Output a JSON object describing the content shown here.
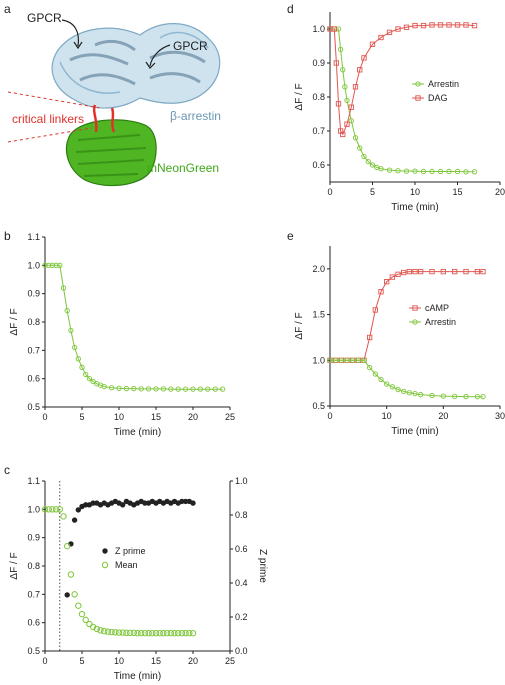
{
  "panels": {
    "a": "a",
    "b": "b",
    "c": "c",
    "d": "d",
    "e": "e"
  },
  "structure": {
    "gpcr_left": "GPCR",
    "gpcr_right": "GPCR",
    "arrestin": "β-arrestin",
    "linkers": "critical linkers",
    "neon": "mNeonGreen",
    "colors": {
      "arrestin": "#a9cde0",
      "neon": "#3ea818",
      "linker": "#e1322a"
    }
  },
  "colors": {
    "green": "#7ec63a",
    "red": "#e25550",
    "black": "#222222"
  },
  "chart_data": [
    {
      "panel": "b",
      "type": "line",
      "xlabel": "Time (min)",
      "ylabel": "ΔF / F",
      "xlim": [
        0,
        25
      ],
      "ylim": [
        0.5,
        1.1
      ],
      "xticks": [
        "0",
        "5",
        "10",
        "15",
        "20",
        "25"
      ],
      "yticks": [
        "0.5",
        "0.6",
        "0.7",
        "0.8",
        "0.9",
        "1.0",
        "1.1"
      ],
      "series": [
        {
          "color": "#7ec63a",
          "x": [
            0.0,
            0.5,
            1.0,
            1.5,
            2.0,
            2.5,
            3.0,
            3.5,
            4.0,
            4.5,
            5.0,
            5.5,
            6.0,
            6.5,
            7.0,
            7.5,
            8.0,
            9.0,
            10.0,
            11.0,
            12.0,
            13.0,
            14.0,
            15.0,
            16.0,
            17.0,
            18.0,
            19.0,
            20.0,
            21.0,
            22.0,
            23.0,
            24.0
          ],
          "y": [
            1.0,
            1.0,
            1.0,
            1.0,
            1.0,
            0.92,
            0.84,
            0.77,
            0.71,
            0.67,
            0.64,
            0.615,
            0.6,
            0.59,
            0.582,
            0.577,
            0.572,
            0.568,
            0.566,
            0.565,
            0.565,
            0.564,
            0.564,
            0.564,
            0.564,
            0.563,
            0.563,
            0.563,
            0.563,
            0.563,
            0.563,
            0.563,
            0.563
          ]
        }
      ]
    },
    {
      "panel": "c",
      "type": "scatter",
      "xlabel": "Time (min)",
      "ylabel": "ΔF / F",
      "y2label": "Z prime",
      "xlim": [
        0,
        25
      ],
      "ylim": [
        0.5,
        1.1
      ],
      "y2lim": [
        0.0,
        1.0
      ],
      "xticks": [
        "0",
        "5",
        "10",
        "15",
        "20",
        "25"
      ],
      "yticks": [
        "0.5",
        "0.6",
        "0.7",
        "0.8",
        "0.9",
        "1.0",
        "1.1"
      ],
      "y2ticks": [
        "0.0",
        "0.2",
        "0.4",
        "0.6",
        "0.8",
        "1.0"
      ],
      "vline": 2.0,
      "legend": [
        "Z prime",
        "Mean"
      ],
      "series": [
        {
          "name": "Z prime",
          "axis": "right",
          "color": "#222222",
          "x": [
            3.0,
            3.5,
            4.0,
            4.5,
            5.0,
            5.5,
            6.0,
            6.5,
            7.0,
            7.5,
            8.0,
            8.5,
            9.0,
            9.5,
            10.0,
            10.5,
            11.0,
            11.5,
            12.0,
            12.5,
            13.0,
            13.5,
            14.0,
            14.5,
            15.0,
            15.5,
            16.0,
            16.5,
            17.0,
            17.5,
            18.0,
            18.5,
            19.0,
            19.5,
            20.0
          ],
          "y": [
            0.33,
            0.63,
            0.77,
            0.83,
            0.85,
            0.86,
            0.86,
            0.87,
            0.87,
            0.86,
            0.87,
            0.86,
            0.87,
            0.88,
            0.87,
            0.86,
            0.88,
            0.87,
            0.86,
            0.87,
            0.88,
            0.87,
            0.87,
            0.88,
            0.87,
            0.88,
            0.87,
            0.88,
            0.87,
            0.88,
            0.87,
            0.88,
            0.88,
            0.88,
            0.87
          ]
        },
        {
          "name": "Mean",
          "axis": "left",
          "color": "#7ec63a",
          "x": [
            0.0,
            0.5,
            1.0,
            1.5,
            2.0,
            2.5,
            3.0,
            3.5,
            4.0,
            4.5,
            5.0,
            5.5,
            6.0,
            6.5,
            7.0,
            7.5,
            8.0,
            8.5,
            9.0,
            9.5,
            10.0,
            10.5,
            11.0,
            11.5,
            12.0,
            12.5,
            13.0,
            13.5,
            14.0,
            14.5,
            15.0,
            15.5,
            16.0,
            16.5,
            17.0,
            17.5,
            18.0,
            18.5,
            19.0,
            19.5,
            20.0
          ],
          "y": [
            1.0,
            1.0,
            1.0,
            1.0,
            1.0,
            0.975,
            0.87,
            0.77,
            0.7,
            0.66,
            0.63,
            0.61,
            0.595,
            0.585,
            0.578,
            0.573,
            0.57,
            0.568,
            0.567,
            0.566,
            0.565,
            0.565,
            0.564,
            0.564,
            0.564,
            0.563,
            0.563,
            0.563,
            0.563,
            0.563,
            0.563,
            0.563,
            0.563,
            0.563,
            0.563,
            0.563,
            0.563,
            0.563,
            0.563,
            0.563,
            0.563
          ]
        }
      ]
    },
    {
      "panel": "d",
      "type": "line",
      "xlabel": "Time (min)",
      "ylabel": "ΔF / F",
      "xlim": [
        0,
        20
      ],
      "ylim": [
        0.55,
        1.05
      ],
      "xticks": [
        "0",
        "5",
        "10",
        "15",
        "20"
      ],
      "yticks": [
        "0.6",
        "0.7",
        "0.8",
        "0.9",
        "1.0"
      ],
      "legend": [
        "Arrestin",
        "DAG"
      ],
      "series": [
        {
          "name": "Arrestin",
          "color": "#7ec63a",
          "x": [
            0.0,
            0.5,
            1.0,
            1.25,
            1.5,
            1.75,
            2.0,
            2.5,
            3.0,
            3.5,
            4.0,
            4.5,
            5.0,
            5.5,
            6.0,
            7.0,
            8.0,
            9.0,
            10.0,
            11.0,
            12.0,
            13.0,
            14.0,
            15.0,
            16.0,
            17.0
          ],
          "y": [
            1.0,
            1.0,
            1.0,
            0.94,
            0.88,
            0.83,
            0.79,
            0.73,
            0.68,
            0.65,
            0.625,
            0.61,
            0.6,
            0.593,
            0.589,
            0.585,
            0.583,
            0.582,
            0.582,
            0.581,
            0.581,
            0.581,
            0.581,
            0.581,
            0.58,
            0.58
          ]
        },
        {
          "name": "DAG",
          "color": "#e25550",
          "x": [
            0.0,
            0.5,
            0.75,
            1.0,
            1.25,
            1.5,
            2.0,
            2.5,
            3.0,
            3.5,
            4.0,
            5.0,
            6.0,
            7.0,
            8.0,
            9.0,
            10.0,
            11.0,
            12.0,
            13.0,
            14.0,
            15.0,
            16.0,
            17.0
          ],
          "y": [
            1.0,
            1.0,
            0.9,
            0.78,
            0.7,
            0.69,
            0.72,
            0.77,
            0.83,
            0.88,
            0.915,
            0.955,
            0.975,
            0.99,
            1.0,
            1.005,
            1.01,
            1.01,
            1.012,
            1.012,
            1.012,
            1.012,
            1.012,
            1.01
          ]
        }
      ]
    },
    {
      "panel": "e",
      "type": "line",
      "xlabel": "Time (min)",
      "ylabel": "ΔF / F",
      "xlim": [
        0,
        30
      ],
      "ylim": [
        0.5,
        2.25
      ],
      "xticks": [
        "0",
        "10",
        "20",
        "30"
      ],
      "yticks": [
        "0.5",
        "1.0",
        "1.5",
        "2.0"
      ],
      "legend": [
        "cAMP",
        "Arrestin"
      ],
      "series": [
        {
          "name": "cAMP",
          "color": "#e25550",
          "x": [
            0.0,
            1.0,
            2.0,
            3.0,
            4.0,
            5.0,
            6.0,
            7.0,
            8.0,
            9.0,
            10.0,
            11.0,
            12.0,
            13.0,
            14.0,
            15.0,
            16.0,
            18.0,
            20.0,
            22.0,
            24.0,
            26.0,
            27.0
          ],
          "y": [
            1.0,
            1.0,
            1.0,
            1.0,
            1.0,
            1.0,
            1.0,
            1.25,
            1.55,
            1.75,
            1.86,
            1.91,
            1.94,
            1.96,
            1.97,
            1.97,
            1.97,
            1.97,
            1.97,
            1.97,
            1.97,
            1.97,
            1.97
          ]
        },
        {
          "name": "Arrestin",
          "color": "#7ec63a",
          "x": [
            0.0,
            1.0,
            2.0,
            3.0,
            4.0,
            5.0,
            6.0,
            7.0,
            8.0,
            9.0,
            10.0,
            11.0,
            12.0,
            13.0,
            14.0,
            15.0,
            16.0,
            18.0,
            20.0,
            22.0,
            24.0,
            26.0,
            27.0
          ],
          "y": [
            1.0,
            1.0,
            1.0,
            1.0,
            1.0,
            1.0,
            1.0,
            0.92,
            0.85,
            0.79,
            0.74,
            0.71,
            0.68,
            0.66,
            0.645,
            0.635,
            0.625,
            0.615,
            0.608,
            0.605,
            0.603,
            0.602,
            0.602
          ]
        }
      ]
    }
  ]
}
